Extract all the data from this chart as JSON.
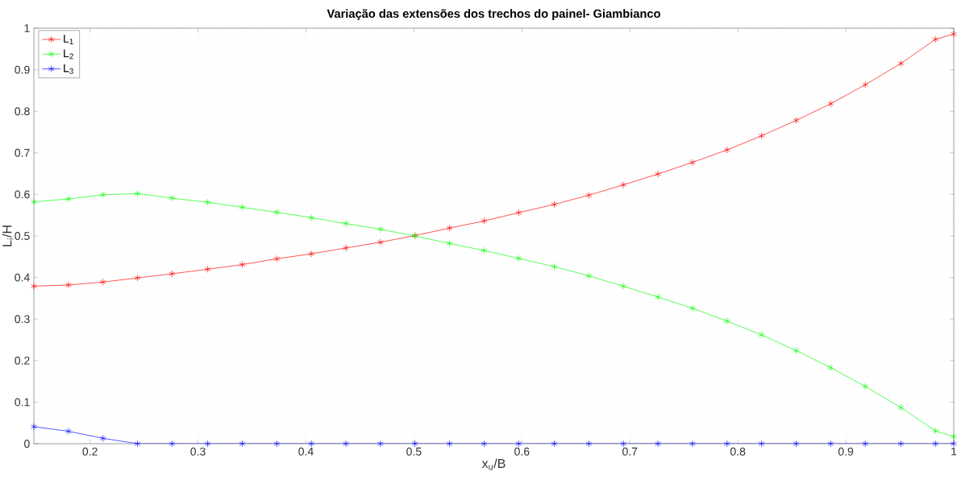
{
  "chart_data": {
    "type": "line",
    "title": "Variação das extensões dos trechos do painel- Giambianco",
    "xlabel": "x$_{u}$/B",
    "ylabel": "L$_{i}$/H",
    "x": [
      0.148,
      0.18,
      0.212,
      0.244,
      0.276,
      0.309,
      0.341,
      0.373,
      0.405,
      0.437,
      0.469,
      0.501,
      0.533,
      0.565,
      0.597,
      0.63,
      0.662,
      0.694,
      0.726,
      0.758,
      0.79,
      0.822,
      0.854,
      0.886,
      0.918,
      0.951,
      0.983,
      1.0
    ],
    "series": [
      {
        "name": "L$_{1}$",
        "color": "#ff0000",
        "values": [
          0.379,
          0.382,
          0.389,
          0.399,
          0.409,
          0.42,
          0.431,
          0.445,
          0.457,
          0.471,
          0.485,
          0.501,
          0.519,
          0.536,
          0.556,
          0.576,
          0.598,
          0.623,
          0.649,
          0.677,
          0.707,
          0.741,
          0.778,
          0.818,
          0.864,
          0.915,
          0.973,
          0.986
        ]
      },
      {
        "name": "L$_{2}$",
        "color": "#00ff00",
        "values": [
          0.582,
          0.589,
          0.599,
          0.602,
          0.591,
          0.581,
          0.569,
          0.557,
          0.544,
          0.53,
          0.516,
          0.5,
          0.482,
          0.465,
          0.446,
          0.426,
          0.404,
          0.379,
          0.353,
          0.326,
          0.295,
          0.262,
          0.224,
          0.183,
          0.138,
          0.087,
          0.031,
          0.017
        ]
      },
      {
        "name": "L$_{3}$",
        "color": "#0000ff",
        "values": [
          0.041,
          0.03,
          0.013,
          0,
          0,
          0,
          0,
          0,
          0,
          0,
          0,
          0,
          0,
          0,
          0,
          0,
          0,
          0,
          0,
          0,
          0,
          0,
          0,
          0,
          0,
          0,
          0,
          0
        ]
      }
    ],
    "xlim": [
      0.148,
      1
    ],
    "ylim": [
      0,
      1
    ],
    "xticks": [
      0.2,
      0.3,
      0.4,
      0.5,
      0.6,
      0.7,
      0.8,
      0.9,
      1
    ],
    "yticks": [
      0,
      0.1,
      0.2,
      0.3,
      0.4,
      0.5,
      0.6,
      0.7,
      0.8,
      0.9,
      1
    ],
    "grid": true,
    "legend": "top left",
    "marker": "cross",
    "line_style": "solid"
  }
}
